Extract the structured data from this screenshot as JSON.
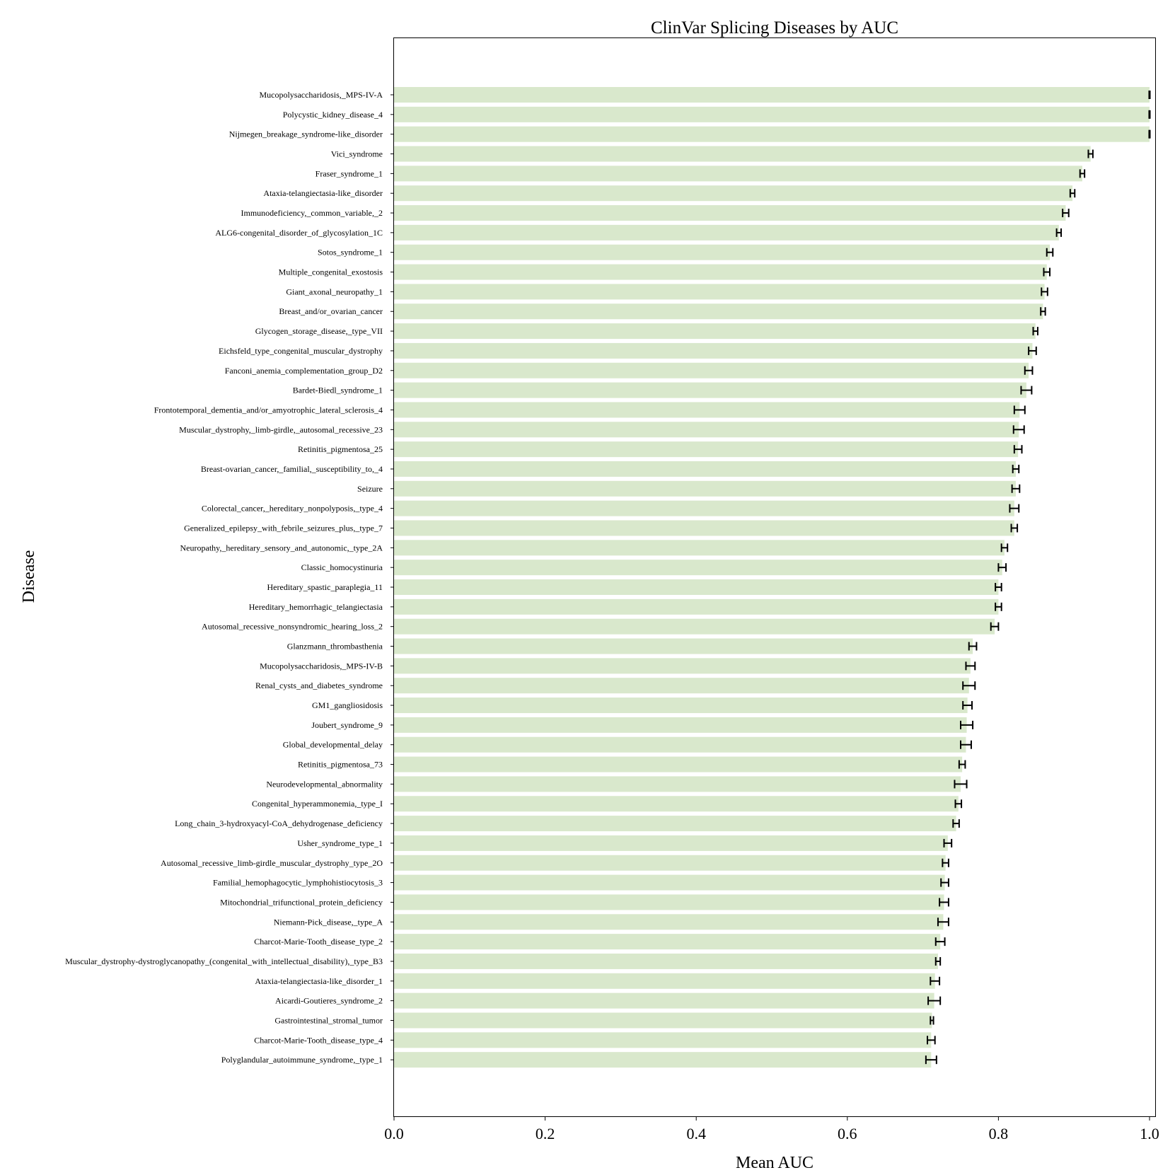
{
  "chart_data": {
    "type": "bar",
    "orientation": "horizontal",
    "title": "ClinVar Splicing Diseases by AUC",
    "xlabel": "Mean AUC",
    "ylabel": "Disease",
    "xlim": [
      0.0,
      1.0
    ],
    "xticks": [
      "0.0",
      "0.2",
      "0.4",
      "0.6",
      "0.8",
      "1.0"
    ],
    "grid": false,
    "bar_color": "#d9e8cc",
    "error_color": "#000000",
    "categories": [
      "Mucopolysaccharidosis,_MPS-IV-A",
      "Polycystic_kidney_disease_4",
      "Nijmegen_breakage_syndrome-like_disorder",
      "Vici_syndrome",
      "Fraser_syndrome_1",
      "Ataxia-telangiectasia-like_disorder",
      "Immunodeficiency,_common_variable,_2",
      "ALG6-congenital_disorder_of_glycosylation_1C",
      "Sotos_syndrome_1",
      "Multiple_congenital_exostosis",
      "Giant_axonal_neuropathy_1",
      "Breast_and/or_ovarian_cancer",
      "Glycogen_storage_disease,_type_VII",
      "Eichsfeld_type_congenital_muscular_dystrophy",
      "Fanconi_anemia_complementation_group_D2",
      "Bardet-Biedl_syndrome_1",
      "Frontotemporal_dementia_and/or_amyotrophic_lateral_sclerosis_4",
      "Muscular_dystrophy,_limb-girdle,_autosomal_recessive_23",
      "Retinitis_pigmentosa_25",
      "Breast-ovarian_cancer,_familial,_susceptibility_to,_4",
      "Seizure",
      "Colorectal_cancer,_hereditary_nonpolyposis,_type_4",
      "Generalized_epilepsy_with_febrile_seizures_plus,_type_7",
      "Neuropathy,_hereditary_sensory_and_autonomic,_type_2A",
      "Classic_homocystinuria",
      "Hereditary_spastic_paraplegia_11",
      "Hereditary_hemorrhagic_telangiectasia",
      "Autosomal_recessive_nonsyndromic_hearing_loss_2",
      "Glanzmann_thrombasthenia",
      "Mucopolysaccharidosis,_MPS-IV-B",
      "Renal_cysts_and_diabetes_syndrome",
      "GM1_gangliosidosis",
      "Joubert_syndrome_9",
      "Global_developmental_delay",
      "Retinitis_pigmentosa_73",
      "Neurodevelopmental_abnormality",
      "Congenital_hyperammonemia,_type_I",
      "Long_chain_3-hydroxyacyl-CoA_dehydrogenase_deficiency",
      "Usher_syndrome_type_1",
      "Autosomal_recessive_limb-girdle_muscular_dystrophy_type_2O",
      "Familial_hemophagocytic_lymphohistiocytosis_3",
      "Mitochondrial_trifunctional_protein_deficiency",
      "Niemann-Pick_disease,_type_A",
      "Charcot-Marie-Tooth_disease_type_2",
      "Muscular_dystrophy-dystroglycanopathy_(congenital_with_intellectual_disability),_type_B3",
      "Ataxia-telangiectasia-like_disorder_1",
      "Aicardi-Goutieres_syndrome_2",
      "Gastrointestinal_stromal_tumor",
      "Charcot-Marie-Tooth_disease_type_4",
      "Polyglandular_autoimmune_syndrome,_type_1"
    ],
    "values": [
      1.0,
      1.0,
      1.0,
      0.922,
      0.911,
      0.898,
      0.889,
      0.88,
      0.868,
      0.864,
      0.861,
      0.859,
      0.849,
      0.845,
      0.84,
      0.837,
      0.828,
      0.827,
      0.826,
      0.823,
      0.823,
      0.821,
      0.821,
      0.808,
      0.805,
      0.8,
      0.8,
      0.795,
      0.766,
      0.763,
      0.761,
      0.759,
      0.758,
      0.757,
      0.752,
      0.75,
      0.747,
      0.744,
      0.733,
      0.73,
      0.729,
      0.728,
      0.727,
      0.723,
      0.72,
      0.716,
      0.715,
      0.712,
      0.711,
      0.711
    ],
    "errors": [
      0.0005,
      0.0005,
      0.0005,
      0.003,
      0.003,
      0.003,
      0.004,
      0.003,
      0.004,
      0.004,
      0.004,
      0.003,
      0.003,
      0.005,
      0.005,
      0.007,
      0.007,
      0.007,
      0.005,
      0.004,
      0.005,
      0.006,
      0.004,
      0.004,
      0.005,
      0.004,
      0.004,
      0.005,
      0.005,
      0.006,
      0.008,
      0.006,
      0.008,
      0.007,
      0.004,
      0.008,
      0.004,
      0.004,
      0.005,
      0.004,
      0.005,
      0.006,
      0.007,
      0.006,
      0.003,
      0.006,
      0.008,
      0.002,
      0.005,
      0.007
    ]
  }
}
